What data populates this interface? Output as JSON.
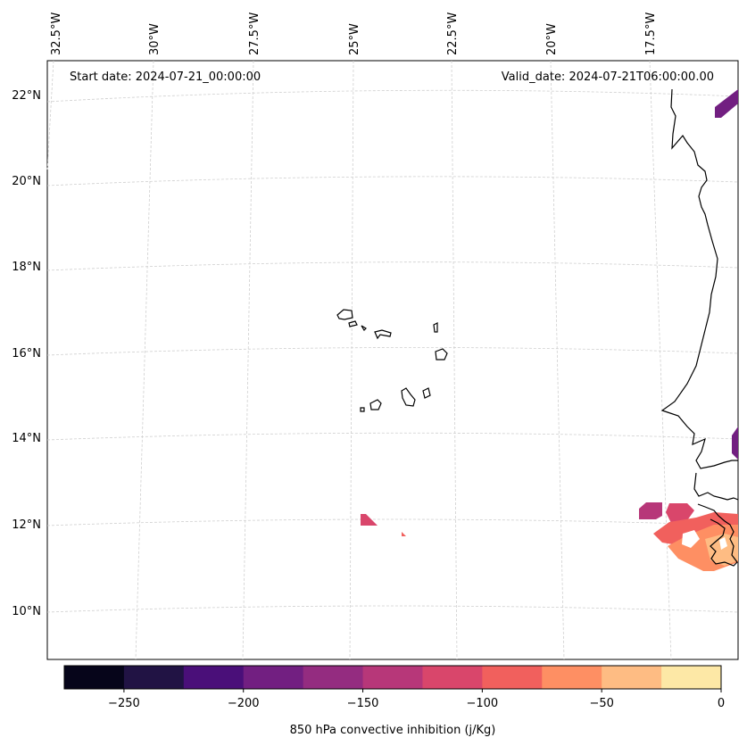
{
  "header": {
    "start_date": "Start date: 2024-07-21_00:00:00",
    "valid_date": "Valid_date: 2024-07-21T06:00:00.00"
  },
  "lon_labels": [
    "32.5°W",
    "30°W",
    "27.5°W",
    "25°W",
    "22.5°W",
    "20°W",
    "17.5°W"
  ],
  "lat_labels": [
    "22°N",
    "20°N",
    "18°N",
    "16°N",
    "14°N",
    "12°N",
    "10°N"
  ],
  "colorbar": {
    "label": "850 hPa convective inhibition (j/Kg)",
    "tick_labels": [
      "−250",
      "−200",
      "−150",
      "−100",
      "−50",
      "0"
    ],
    "colors": [
      "#06051a",
      "#211344",
      "#4a0f79",
      "#721f81",
      "#942c80",
      "#b73779",
      "#d9466b",
      "#f1605d",
      "#fe8f63",
      "#febc83",
      "#fde8a6"
    ]
  }
}
